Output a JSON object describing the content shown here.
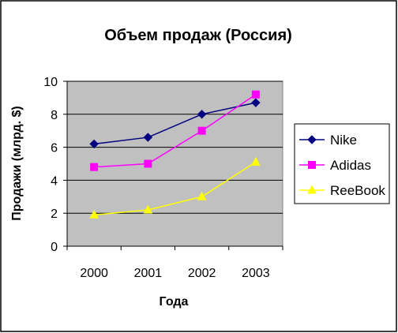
{
  "chart_data": {
    "type": "line",
    "title": "Объем продаж (Россия)",
    "xlabel": "Года",
    "ylabel": "Продажи (млрд. $)",
    "categories": [
      "2000",
      "2001",
      "2002",
      "2003"
    ],
    "ylim": [
      0,
      10
    ],
    "yticks": [
      0,
      2,
      4,
      6,
      8,
      10
    ],
    "grid": true,
    "legend_position": "right",
    "plot_background": "#c0c0c0",
    "series": [
      {
        "name": "Nike",
        "values": [
          6.2,
          6.6,
          8.0,
          8.7
        ],
        "color": "#000080",
        "marker": "diamond"
      },
      {
        "name": "Adidas",
        "values": [
          4.8,
          5.0,
          7.0,
          9.2
        ],
        "color": "#ff00ff",
        "marker": "square"
      },
      {
        "name": "ReeBook",
        "values": [
          1.9,
          2.2,
          3.0,
          5.1
        ],
        "color": "#ffff00",
        "marker": "triangle"
      }
    ]
  }
}
